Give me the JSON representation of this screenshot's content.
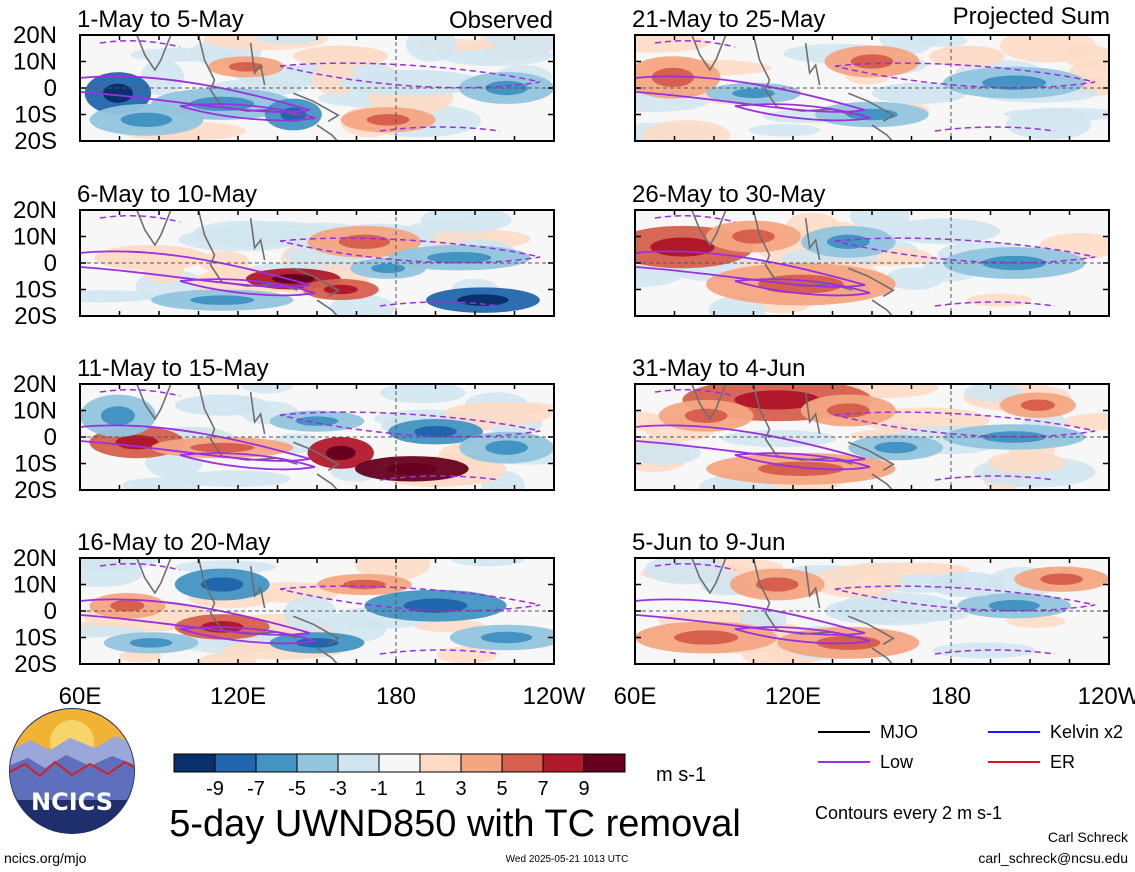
{
  "figure": {
    "main_title": "5-day UWND850 with TC removal",
    "units": "m s-1",
    "contour_note": "Contours every 2 m s-1",
    "left_column_label": "Observed",
    "right_column_label": "Projected Sum",
    "footer_left": "ncics.org/mjo",
    "footer_center": "Wed 2025-05-21 1013 UTC",
    "author": "Carl Schreck",
    "email": "carl_schreck@ncsu.edu",
    "logo_text": "NCICS"
  },
  "legend": [
    {
      "label": "MJO",
      "color": "#000000"
    },
    {
      "label": "Kelvin x2",
      "color": "#1a1aff"
    },
    {
      "label": "Low",
      "color": "#9b30e0"
    },
    {
      "label": "ER",
      "color": "#e0101a"
    }
  ],
  "colorbar": {
    "ticks": [
      "-9",
      "-7",
      "-5",
      "-3",
      "-1",
      "1",
      "3",
      "5",
      "7",
      "9"
    ],
    "colors": [
      "#08306b",
      "#2166ac",
      "#4393c3",
      "#92c5de",
      "#d1e5f0",
      "#f7f7f7",
      "#fddbc7",
      "#f4a582",
      "#d6604d",
      "#b2182b",
      "#67001f"
    ]
  },
  "chart_data": {
    "type": "heatmap",
    "x_axis": {
      "range_labels": [
        "60E",
        "120E",
        "180",
        "120W"
      ]
    },
    "y_axis": {
      "range_labels": [
        "20N",
        "10N",
        "0",
        "10S",
        "20S"
      ]
    },
    "panels": [
      {
        "title": "1-May to 5-May",
        "group": "Observed"
      },
      {
        "title": "6-May to 10-May",
        "group": "Observed"
      },
      {
        "title": "11-May to 15-May",
        "group": "Observed"
      },
      {
        "title": "16-May to 20-May",
        "group": "Observed"
      },
      {
        "title": "21-May to 25-May",
        "group": "Projected Sum"
      },
      {
        "title": "26-May to 30-May",
        "group": "Projected Sum"
      },
      {
        "title": "31-May to 4-Jun",
        "group": "Projected Sum"
      },
      {
        "title": "5-Jun to 9-Jun",
        "group": "Projected Sum"
      }
    ]
  }
}
